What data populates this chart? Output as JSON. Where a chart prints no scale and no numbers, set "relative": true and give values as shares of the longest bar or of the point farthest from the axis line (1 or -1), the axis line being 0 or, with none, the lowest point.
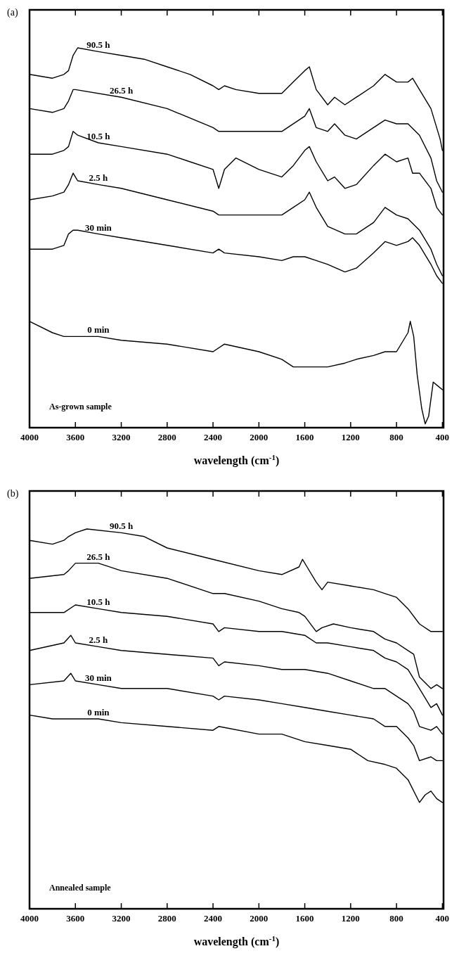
{
  "chart_data": [
    {
      "type": "line",
      "title": "(a)",
      "xlabel": "wavelength (cm$^{-1}$)",
      "xlim": [
        4000,
        390
      ],
      "xticks": [
        4000,
        3600,
        3200,
        2800,
        2400,
        2000,
        1600,
        1200,
        800,
        400
      ],
      "relative": true,
      "tick_labels": "x",
      "annotations": [
        "As-grown sample"
      ],
      "series": [
        {
          "name": "90.5 h",
          "color": "#000000",
          "x": [
            4000,
            3800,
            3700,
            3660,
            3620,
            3580,
            3400,
            3200,
            3000,
            2800,
            2600,
            2400,
            2350,
            2300,
            2200,
            2000,
            1800,
            1700,
            1600,
            1560,
            1500,
            1400,
            1340,
            1250,
            1150,
            1000,
            900,
            800,
            700,
            660,
            600,
            560,
            500,
            450,
            420,
            400
          ],
          "values": [
            0.93,
            0.92,
            0.93,
            0.94,
            0.98,
            1,
            0.99,
            0.98,
            0.97,
            0.95,
            0.93,
            0.9,
            0.89,
            0.9,
            0.89,
            0.88,
            0.88,
            0.91,
            0.94,
            0.95,
            0.89,
            0.85,
            0.87,
            0.85,
            0.87,
            0.9,
            0.93,
            0.91,
            0.91,
            0.92,
            0.89,
            0.87,
            0.84,
            0.79,
            0.76,
            0.73
          ]
        },
        {
          "name": "26.5 h",
          "color": "#000000",
          "x": [
            4000,
            3800,
            3700,
            3660,
            3620,
            3600,
            3200,
            2800,
            2400,
            2350,
            2000,
            1800,
            1600,
            1560,
            1500,
            1400,
            1340,
            1250,
            1150,
            1000,
            900,
            800,
            700,
            600,
            500,
            450,
            400
          ],
          "values": [
            0.84,
            0.83,
            0.84,
            0.86,
            0.89,
            0.89,
            0.87,
            0.84,
            0.79,
            0.78,
            0.78,
            0.78,
            0.82,
            0.84,
            0.79,
            0.78,
            0.8,
            0.77,
            0.76,
            0.79,
            0.81,
            0.8,
            0.8,
            0.77,
            0.71,
            0.65,
            0.62
          ]
        },
        {
          "name": "10.5 h",
          "color": "#000000",
          "x": [
            4000,
            3800,
            3700,
            3660,
            3620,
            3580,
            3400,
            3200,
            2800,
            2600,
            2400,
            2350,
            2300,
            2200,
            2000,
            1800,
            1700,
            1600,
            1560,
            1500,
            1400,
            1340,
            1250,
            1150,
            1000,
            900,
            800,
            700,
            660,
            600,
            500,
            450,
            400
          ],
          "values": [
            0.72,
            0.72,
            0.73,
            0.74,
            0.78,
            0.77,
            0.75,
            0.74,
            0.72,
            0.7,
            0.68,
            0.63,
            0.68,
            0.71,
            0.68,
            0.66,
            0.69,
            0.73,
            0.74,
            0.7,
            0.65,
            0.66,
            0.63,
            0.64,
            0.69,
            0.72,
            0.7,
            0.71,
            0.67,
            0.67,
            0.63,
            0.58,
            0.56
          ]
        },
        {
          "name": "2.5 h",
          "color": "#000000",
          "x": [
            4000,
            3800,
            3700,
            3660,
            3620,
            3580,
            3400,
            3200,
            2800,
            2400,
            2350,
            2000,
            1800,
            1700,
            1600,
            1560,
            1500,
            1400,
            1250,
            1150,
            1000,
            900,
            800,
            700,
            600,
            500,
            450,
            400
          ],
          "values": [
            0.6,
            0.61,
            0.62,
            0.64,
            0.67,
            0.65,
            0.64,
            0.63,
            0.6,
            0.57,
            0.56,
            0.56,
            0.56,
            0.58,
            0.6,
            0.62,
            0.58,
            0.53,
            0.51,
            0.51,
            0.54,
            0.58,
            0.56,
            0.55,
            0.52,
            0.47,
            0.43,
            0.4
          ]
        },
        {
          "name": "30 min",
          "color": "#000000",
          "x": [
            4000,
            3800,
            3700,
            3660,
            3620,
            3580,
            3400,
            3200,
            2800,
            2400,
            2350,
            2300,
            2000,
            1800,
            1700,
            1600,
            1500,
            1400,
            1250,
            1150,
            1000,
            900,
            800,
            700,
            660,
            600,
            500,
            450,
            400
          ],
          "values": [
            0.47,
            0.47,
            0.48,
            0.51,
            0.52,
            0.52,
            0.51,
            0.5,
            0.48,
            0.46,
            0.47,
            0.46,
            0.45,
            0.44,
            0.45,
            0.45,
            0.44,
            0.43,
            0.41,
            0.42,
            0.46,
            0.49,
            0.48,
            0.49,
            0.5,
            0.48,
            0.43,
            0.4,
            0.38
          ]
        },
        {
          "name": "0 min",
          "color": "#000000",
          "x": [
            4000,
            3800,
            3700,
            3400,
            3200,
            2800,
            2400,
            2300,
            2000,
            1800,
            1700,
            1600,
            1500,
            1400,
            1250,
            1150,
            1000,
            900,
            800,
            700,
            680,
            650,
            620,
            580,
            550,
            520,
            480,
            440,
            400
          ],
          "values": [
            0.28,
            0.25,
            0.24,
            0.24,
            0.23,
            0.22,
            0.2,
            0.22,
            0.2,
            0.18,
            0.16,
            0.16,
            0.16,
            0.16,
            0.17,
            0.18,
            0.19,
            0.2,
            0.2,
            0.25,
            0.28,
            0.24,
            0.14,
            0.05,
            0.01,
            0.03,
            0.12,
            0.11,
            0.1
          ]
        }
      ]
    },
    {
      "type": "line",
      "title": "(b)",
      "xlabel": "wavelength (cm$^{-1}$)",
      "xlim": [
        4000,
        390
      ],
      "xticks": [
        4000,
        3600,
        3200,
        2800,
        2400,
        2000,
        1600,
        1200,
        800,
        400
      ],
      "relative": true,
      "tick_labels": "x",
      "annotations": [
        "Annealed sample"
      ],
      "series": [
        {
          "name": "90.5 h",
          "color": "#000000",
          "x": [
            4000,
            3800,
            3700,
            3660,
            3600,
            3500,
            3200,
            3000,
            2800,
            2400,
            2000,
            1800,
            1650,
            1620,
            1580,
            1500,
            1450,
            1400,
            1200,
            1000,
            900,
            800,
            700,
            600,
            500,
            450,
            400
          ],
          "values": [
            0.97,
            0.96,
            0.97,
            0.98,
            0.99,
            1,
            0.99,
            0.98,
            0.95,
            0.92,
            0.89,
            0.88,
            0.9,
            0.92,
            0.9,
            0.86,
            0.84,
            0.86,
            0.85,
            0.84,
            0.83,
            0.82,
            0.79,
            0.75,
            0.73,
            0.73,
            0.73
          ]
        },
        {
          "name": "26.5 h",
          "color": "#000000",
          "x": [
            4000,
            3700,
            3660,
            3600,
            3400,
            3200,
            2800,
            2400,
            2300,
            2000,
            1800,
            1650,
            1600,
            1500,
            1450,
            1350,
            1200,
            1000,
            900,
            800,
            700,
            650,
            600,
            500,
            450,
            400
          ],
          "values": [
            0.87,
            0.88,
            0.89,
            0.91,
            0.91,
            0.89,
            0.87,
            0.83,
            0.83,
            0.81,
            0.79,
            0.78,
            0.77,
            0.73,
            0.74,
            0.75,
            0.74,
            0.73,
            0.71,
            0.7,
            0.68,
            0.67,
            0.61,
            0.58,
            0.59,
            0.58
          ]
        },
        {
          "name": "10.5 h",
          "color": "#000000",
          "x": [
            4000,
            3700,
            3600,
            3400,
            3200,
            2800,
            2400,
            2350,
            2300,
            2000,
            1800,
            1600,
            1500,
            1400,
            1200,
            1000,
            900,
            800,
            700,
            680,
            600,
            500,
            450,
            400
          ],
          "values": [
            0.78,
            0.78,
            0.8,
            0.79,
            0.78,
            0.77,
            0.75,
            0.73,
            0.74,
            0.73,
            0.73,
            0.72,
            0.7,
            0.7,
            0.69,
            0.68,
            0.66,
            0.65,
            0.63,
            0.62,
            0.58,
            0.53,
            0.54,
            0.51
          ]
        },
        {
          "name": "2.5 h",
          "color": "#000000",
          "x": [
            4000,
            3700,
            3640,
            3600,
            3400,
            3200,
            2800,
            2400,
            2350,
            2300,
            2000,
            1800,
            1600,
            1400,
            1200,
            1000,
            900,
            800,
            700,
            650,
            600,
            500,
            450,
            400
          ],
          "values": [
            0.68,
            0.7,
            0.72,
            0.7,
            0.69,
            0.68,
            0.67,
            0.66,
            0.64,
            0.65,
            0.64,
            0.63,
            0.63,
            0.62,
            0.6,
            0.58,
            0.58,
            0.56,
            0.54,
            0.52,
            0.48,
            0.47,
            0.48,
            0.46
          ]
        },
        {
          "name": "30 min",
          "color": "#000000",
          "x": [
            4000,
            3700,
            3640,
            3600,
            3400,
            3200,
            2800,
            2400,
            2350,
            2300,
            2000,
            1800,
            1600,
            1400,
            1200,
            1000,
            900,
            800,
            700,
            650,
            600,
            500,
            450,
            400
          ],
          "values": [
            0.59,
            0.6,
            0.62,
            0.6,
            0.59,
            0.58,
            0.58,
            0.56,
            0.55,
            0.56,
            0.55,
            0.54,
            0.53,
            0.52,
            0.51,
            0.5,
            0.48,
            0.48,
            0.45,
            0.43,
            0.39,
            0.4,
            0.39,
            0.39
          ]
        },
        {
          "name": "0 min",
          "color": "#000000",
          "x": [
            4000,
            3800,
            3600,
            3400,
            3200,
            2800,
            2400,
            2350,
            2000,
            1800,
            1600,
            1400,
            1200,
            1050,
            900,
            800,
            700,
            600,
            550,
            500,
            450,
            400
          ],
          "values": [
            0.51,
            0.5,
            0.5,
            0.5,
            0.49,
            0.48,
            0.47,
            0.48,
            0.46,
            0.46,
            0.44,
            0.43,
            0.42,
            0.39,
            0.38,
            0.37,
            0.34,
            0.28,
            0.3,
            0.31,
            0.29,
            0.28
          ]
        }
      ]
    }
  ]
}
